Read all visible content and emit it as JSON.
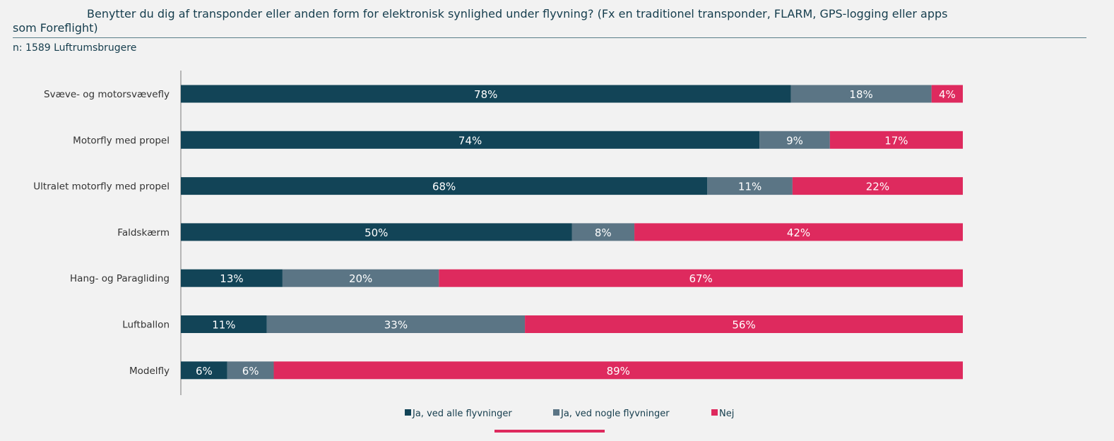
{
  "header": {
    "title_line1": "Benytter du dig af transponder eller anden form for elektronisk synlighed under flyvning? (Fx en traditionel transponder, FLARM, GPS-logging eller apps",
    "title_line2": "som Foreflight)",
    "sample": "n: 1589 Luftrumsbrugere"
  },
  "chart_data": {
    "type": "bar",
    "orientation": "horizontal",
    "stacked": true,
    "categories": [
      "Svæve- og motorsvævefly",
      "Motorfly med propel",
      "Ultralet motorfly med propel",
      "Faldskærm",
      "Hang- og Paragliding",
      "Luftballon",
      "Modelfly"
    ],
    "series": [
      {
        "name": "Ja, ved alle flyvninger",
        "color": "#124457",
        "values": [
          78,
          74,
          68,
          50,
          13,
          11,
          6
        ]
      },
      {
        "name": "Ja, ved nogle flyvninger",
        "color": "#5b7585",
        "values": [
          18,
          9,
          11,
          8,
          20,
          33,
          6
        ]
      },
      {
        "name": "Nej",
        "color": "#de2a5e",
        "values": [
          4,
          17,
          22,
          42,
          67,
          56,
          89
        ]
      }
    ],
    "value_suffix": "%",
    "legend_position": "bottom",
    "grid": false
  }
}
